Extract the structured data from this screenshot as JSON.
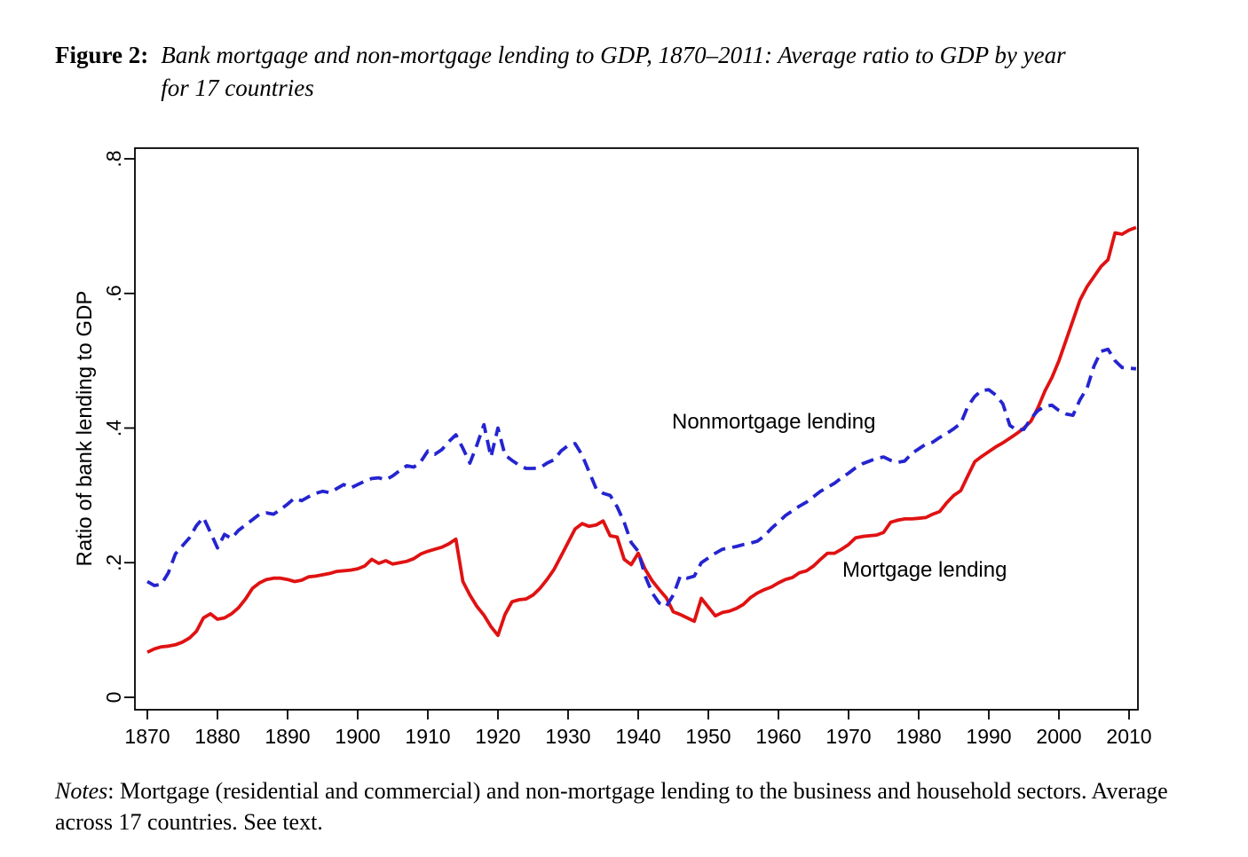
{
  "figure_caption": {
    "label": "Figure 2:",
    "line1": "Bank mortgage and non-mortgage lending to GDP, 1870–2011: Average ratio to GDP by year",
    "line2": "for 17 countries"
  },
  "notes": {
    "label": "Notes",
    "line1_rest": ": Mortgage (residential and commercial) and non-mortgage lending to the business and household",
    "line2": "sectors. Average across 17 countries. See text."
  },
  "chart_data": {
    "type": "line",
    "title": "",
    "xlabel": "",
    "ylabel": "Ratio of bank lending to GDP",
    "grid": false,
    "legend_position": "inline-annotations",
    "x_range": [
      1870,
      2011
    ],
    "xlim": [
      1868.2,
      2011.4
    ],
    "ylim": [
      -0.018,
      0.816
    ],
    "x_start_year": 1870,
    "x_tick_years": [
      1870,
      1880,
      1890,
      1900,
      1910,
      1920,
      1930,
      1940,
      1950,
      1960,
      1970,
      1980,
      1990,
      2000,
      2010
    ],
    "y_ticks": [
      {
        "v": 0.0,
        "label": "0"
      },
      {
        "v": 0.2,
        "label": ".2"
      },
      {
        "v": 0.4,
        "label": ".4"
      },
      {
        "v": 0.6,
        "label": ".6"
      },
      {
        "v": 0.8,
        "label": ".8"
      }
    ],
    "series": [
      {
        "name": "Mortgage lending",
        "color": "#e01212",
        "line_style": "solid",
        "start_year": 1870,
        "values": [
          0.067,
          0.072,
          0.075,
          0.076,
          0.078,
          0.082,
          0.088,
          0.098,
          0.118,
          0.124,
          0.116,
          0.118,
          0.124,
          0.133,
          0.146,
          0.162,
          0.17,
          0.175,
          0.177,
          0.177,
          0.175,
          0.172,
          0.174,
          0.179,
          0.18,
          0.182,
          0.184,
          0.187,
          0.188,
          0.189,
          0.191,
          0.195,
          0.205,
          0.199,
          0.203,
          0.198,
          0.2,
          0.202,
          0.206,
          0.213,
          0.217,
          0.22,
          0.223,
          0.228,
          0.235,
          0.172,
          0.152,
          0.135,
          0.122,
          0.105,
          0.092,
          0.123,
          0.142,
          0.145,
          0.146,
          0.152,
          0.162,
          0.175,
          0.19,
          0.21,
          0.23,
          0.25,
          0.258,
          0.254,
          0.256,
          0.262,
          0.24,
          0.238,
          0.205,
          0.197,
          0.214,
          0.19,
          0.173,
          0.16,
          0.148,
          0.127,
          0.123,
          0.118,
          0.113,
          0.147,
          0.134,
          0.121,
          0.126,
          0.128,
          0.132,
          0.138,
          0.148,
          0.155,
          0.16,
          0.164,
          0.17,
          0.175,
          0.178,
          0.185,
          0.188,
          0.195,
          0.205,
          0.214,
          0.214,
          0.22,
          0.227,
          0.237,
          0.239,
          0.24,
          0.241,
          0.245,
          0.26,
          0.263,
          0.265,
          0.265,
          0.266,
          0.267,
          0.272,
          0.276,
          0.289,
          0.3,
          0.307,
          0.329,
          0.35,
          0.358,
          0.365,
          0.372,
          0.378,
          0.385,
          0.392,
          0.4,
          0.41,
          0.43,
          0.455,
          0.475,
          0.5,
          0.53,
          0.56,
          0.59,
          0.61,
          0.625,
          0.64,
          0.65,
          0.69,
          0.688,
          0.694,
          0.698
        ]
      },
      {
        "name": "Nonmortgage lending",
        "color": "#2424d0",
        "line_style": "dashed",
        "start_year": 1870,
        "values": [
          0.172,
          0.166,
          0.168,
          0.185,
          0.213,
          0.225,
          0.237,
          0.255,
          0.267,
          0.245,
          0.222,
          0.242,
          0.236,
          0.248,
          0.256,
          0.264,
          0.272,
          0.274,
          0.272,
          0.279,
          0.287,
          0.296,
          0.292,
          0.298,
          0.303,
          0.306,
          0.304,
          0.31,
          0.316,
          0.311,
          0.316,
          0.321,
          0.325,
          0.326,
          0.323,
          0.329,
          0.337,
          0.344,
          0.342,
          0.35,
          0.366,
          0.361,
          0.368,
          0.38,
          0.39,
          0.37,
          0.348,
          0.375,
          0.405,
          0.357,
          0.4,
          0.36,
          0.352,
          0.345,
          0.34,
          0.34,
          0.341,
          0.348,
          0.353,
          0.366,
          0.374,
          0.377,
          0.36,
          0.335,
          0.31,
          0.303,
          0.3,
          0.283,
          0.26,
          0.23,
          0.217,
          0.18,
          0.155,
          0.14,
          0.135,
          0.152,
          0.18,
          0.177,
          0.18,
          0.2,
          0.207,
          0.214,
          0.22,
          0.222,
          0.224,
          0.227,
          0.229,
          0.232,
          0.24,
          0.251,
          0.26,
          0.27,
          0.277,
          0.284,
          0.29,
          0.298,
          0.306,
          0.312,
          0.318,
          0.326,
          0.333,
          0.341,
          0.347,
          0.351,
          0.355,
          0.357,
          0.352,
          0.349,
          0.351,
          0.362,
          0.369,
          0.376,
          0.379,
          0.386,
          0.392,
          0.399,
          0.407,
          0.432,
          0.447,
          0.456,
          0.457,
          0.449,
          0.436,
          0.404,
          0.397,
          0.398,
          0.414,
          0.426,
          0.432,
          0.434,
          0.426,
          0.421,
          0.419,
          0.442,
          0.459,
          0.492,
          0.514,
          0.517,
          0.5,
          0.49,
          0.489,
          0.488
        ]
      }
    ]
  }
}
